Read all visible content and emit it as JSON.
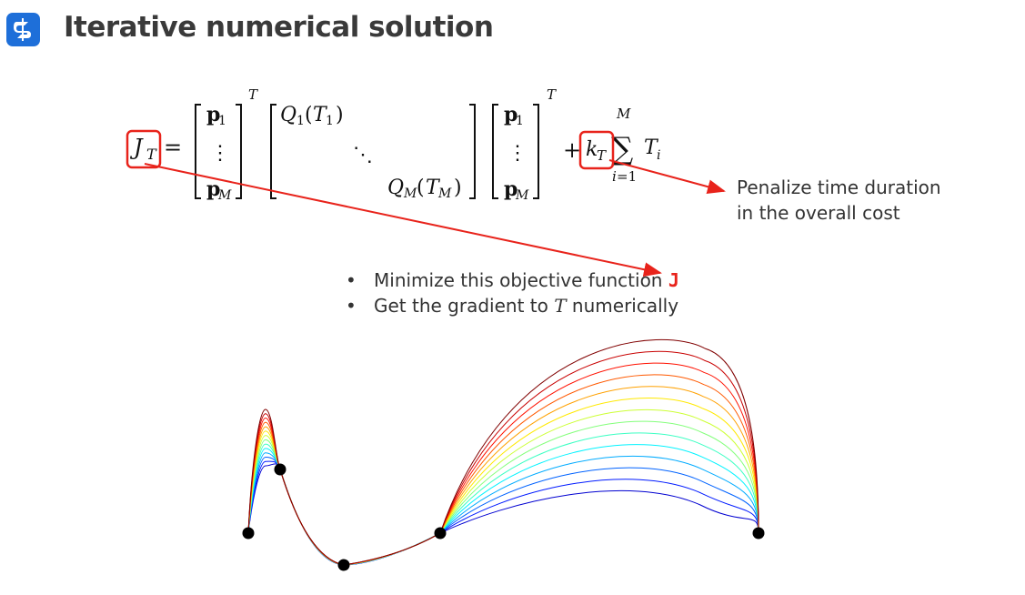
{
  "header": {
    "logo_icon": "brand-logo-icon",
    "title": "Iterative numerical solution"
  },
  "formula": {
    "lhs": "J_T",
    "main_symbols": {
      "J": "J",
      "T": "T",
      "p": "p",
      "M": "M",
      "one": "1",
      "Q": "Q",
      "k": "k",
      "i": "i",
      "equals_one": "=1",
      "sum": "∑",
      "plus": "+",
      "equals": "=",
      "dots": "⋮",
      "ddots": "⋱",
      "lparen": "(",
      "rparen": ")"
    }
  },
  "annotation": {
    "line1": "Penalize time duration",
    "line2": "in the overall cost"
  },
  "bullets": {
    "item1_text": "Minimize this objective function ",
    "item1_highlight": "J",
    "item2_prefix": "Get the gradient to ",
    "item2_var": "T",
    "item2_suffix": " numerically"
  },
  "colors": {
    "accent_red": "#e8231b",
    "brand_blue": "#1e6fd9"
  },
  "trajectory": {
    "waypoint_count": 5,
    "curve_count": 14,
    "colormap": "jet"
  }
}
